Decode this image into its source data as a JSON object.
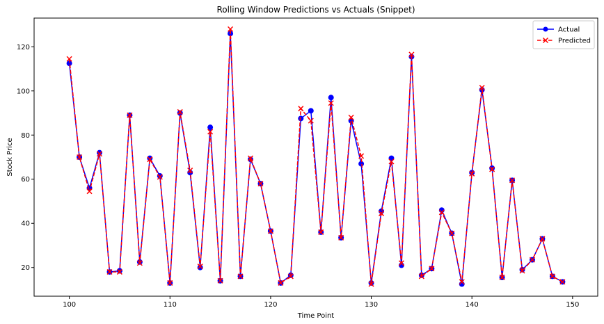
{
  "chart_data": {
    "type": "line",
    "title": "Rolling Window Predictions vs Actuals (Snippet)",
    "xlabel": "Time Point",
    "ylabel": "Stock Price",
    "xlim": [
      96.5,
      152.5
    ],
    "ylim": [
      7,
      133
    ],
    "xticks": [
      100,
      110,
      120,
      130,
      140,
      150
    ],
    "yticks": [
      20,
      40,
      60,
      80,
      100,
      120
    ],
    "grid": false,
    "legend_position": "upper right",
    "x": [
      100,
      101,
      102,
      103,
      104,
      105,
      106,
      107,
      108,
      109,
      110,
      111,
      112,
      113,
      114,
      115,
      116,
      117,
      118,
      119,
      120,
      121,
      122,
      123,
      124,
      125,
      126,
      127,
      128,
      129,
      130,
      131,
      132,
      133,
      134,
      135,
      136,
      137,
      138,
      139,
      140,
      141,
      142,
      143,
      144,
      145,
      146,
      147,
      148,
      149
    ],
    "series": [
      {
        "name": "Actual",
        "color": "#0000ff",
        "marker": "circle",
        "line_style": "solid",
        "values": [
          112.5,
          70,
          56,
          72,
          18,
          18.5,
          89,
          22.5,
          69.5,
          61.5,
          13,
          90,
          63,
          20,
          83.5,
          14,
          126,
          16,
          69,
          58,
          36.5,
          13,
          16.5,
          87.5,
          91,
          36,
          97,
          33.5,
          86.5,
          67,
          13,
          45.5,
          69.5,
          21,
          115.5,
          16.5,
          19.5,
          46,
          35.5,
          12.5,
          63,
          100.5,
          65,
          15.5,
          59.5,
          19,
          23.5,
          33,
          16,
          13.5
        ]
      },
      {
        "name": "Predicted",
        "color": "#ff0000",
        "marker": "x",
        "line_style": "dashed",
        "values": [
          114.5,
          70,
          54.5,
          71.5,
          18,
          18,
          89,
          22,
          69,
          61,
          13,
          90.5,
          64,
          20.5,
          81.5,
          14,
          128,
          16,
          69.5,
          58,
          36.5,
          13,
          16,
          92,
          86.5,
          36,
          94.5,
          33.5,
          88,
          70.5,
          12.5,
          44.5,
          68,
          22,
          116.5,
          16,
          19.5,
          45,
          35.5,
          13.5,
          62.5,
          101.5,
          64.5,
          15.5,
          59.5,
          18.5,
          23.5,
          33,
          16,
          13.5
        ]
      }
    ]
  }
}
